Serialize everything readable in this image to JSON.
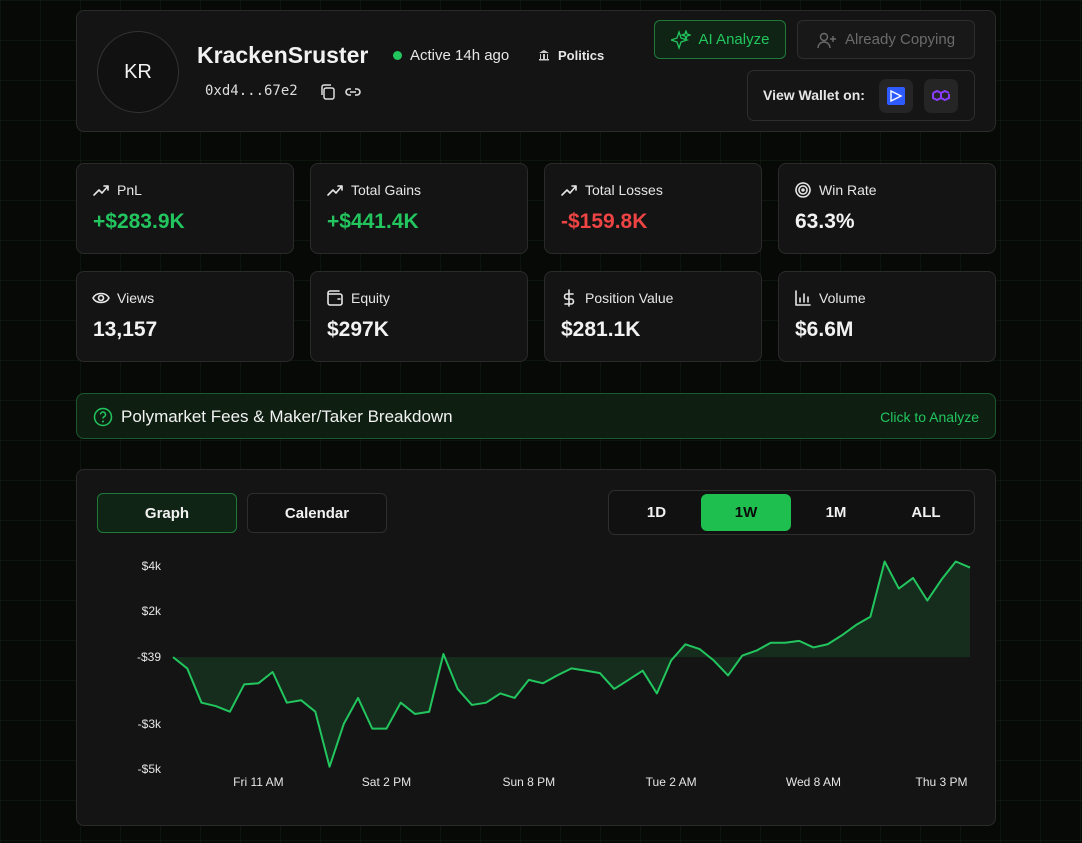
{
  "profile": {
    "avatar": "KR",
    "name": "KrackenSruster",
    "status": "Active 14h ago",
    "category": "Politics",
    "address": "0xd4...67e2"
  },
  "actions": {
    "analyze": "AI Analyze",
    "copying": "Already Copying",
    "view_wallet": "View Wallet on:"
  },
  "stats": [
    {
      "label": "PnL",
      "value": "+$283.9K"
    },
    {
      "label": "Total Gains",
      "value": "+$441.4K"
    },
    {
      "label": "Total Losses",
      "value": "-$159.8K"
    },
    {
      "label": "Win Rate",
      "value": "63.3%"
    },
    {
      "label": "Views",
      "value": "13,157"
    },
    {
      "label": "Equity",
      "value": "$297K"
    },
    {
      "label": "Position Value",
      "value": "$281.1K"
    },
    {
      "label": "Volume",
      "value": "$6.6M"
    }
  ],
  "banner": {
    "title": "Polymarket Fees & Maker/Taker Breakdown",
    "action": "Click to Analyze"
  },
  "tabs": [
    "Graph",
    "Calendar"
  ],
  "ranges": [
    "1D",
    "1W",
    "1M",
    "ALL"
  ],
  "chart_data": {
    "type": "line",
    "color": "#22c55e",
    "fill": true,
    "categories": [
      null,
      null,
      null,
      null,
      null,
      null,
      "Fri 11 AM",
      null,
      null,
      null,
      null,
      null,
      null,
      null,
      null,
      "Sat 2 PM",
      null,
      null,
      null,
      null,
      null,
      null,
      null,
      null,
      null,
      "Sun 8 PM",
      null,
      null,
      null,
      null,
      null,
      null,
      null,
      null,
      null,
      "Tue 2 AM",
      null,
      null,
      null,
      null,
      null,
      null,
      null,
      null,
      null,
      "Wed 8 AM",
      null,
      null,
      null,
      null,
      null,
      null,
      null,
      null,
      "Thu 3 PM",
      null,
      null
    ],
    "values": [
      -39,
      -540,
      -2060,
      -2210,
      -2460,
      -1250,
      -1200,
      -700,
      -2060,
      -1950,
      -2460,
      -4900,
      -3000,
      -1850,
      -3210,
      -3210,
      -2060,
      -2560,
      -2460,
      100,
      -1450,
      -2160,
      -2060,
      -1650,
      -1850,
      -1050,
      -1200,
      -850,
      -540,
      -640,
      -750,
      -1450,
      -1050,
      -640,
      -1650,
      -190,
      530,
      320,
      -190,
      -850,
      30,
      250,
      600,
      600,
      680,
      390,
      530,
      930,
      1390,
      1750,
      4200,
      3000,
      3470,
      2470,
      3400,
      4200,
      3930
    ],
    "ylim": [
      -5200,
      4400
    ],
    "yticks": [
      {
        "value": 4000,
        "label": "$4k"
      },
      {
        "value": 2000,
        "label": "$2k"
      },
      {
        "value": -39,
        "label": "-$39"
      },
      {
        "value": -3000,
        "label": "-$3k"
      },
      {
        "value": -5000,
        "label": "-$5k"
      }
    ]
  }
}
